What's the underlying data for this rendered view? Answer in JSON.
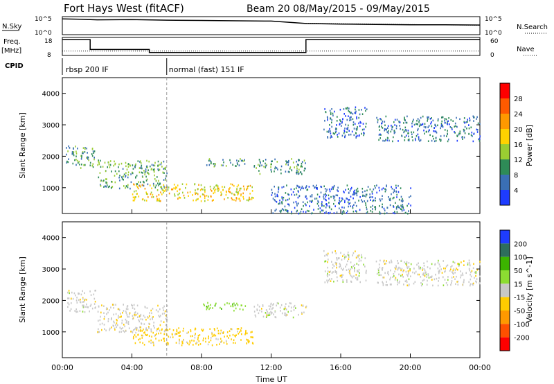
{
  "header": {
    "title": "Fort Hays West (fitACF)",
    "subtitle": "Beam 20 08/May/2015 - 09/May/2015"
  },
  "summary": {
    "nsky_label": "N.Sky",
    "nsky_ticks": [
      "10^5",
      "10^0"
    ],
    "nsearch_label": "N.Search",
    "nsearch_ticks": [
      "10^5",
      "10^0"
    ],
    "freq_label": "Freq.",
    "freq_unit": "[MHz]",
    "freq_ticks": [
      "18",
      "8"
    ],
    "nave_label": "Nave",
    "nave_ticks": [
      "60",
      "0"
    ],
    "cpid_label": "CPID",
    "cpid_segments": [
      {
        "label": "rbsp 200 IF",
        "start_hour": 0
      },
      {
        "label": "normal (fast) 151 IF",
        "start_hour": 6
      }
    ]
  },
  "axes": {
    "xlabel": "Time UT",
    "xticks": [
      "00:00",
      "04:00",
      "08:00",
      "12:00",
      "16:00",
      "20:00",
      "00:00"
    ],
    "ylabel": "Slant Range [km]",
    "yticks": [
      "1000",
      "2000",
      "3000",
      "4000"
    ]
  },
  "colorbars": {
    "power": {
      "label": "Power [dB]",
      "ticks": [
        "28",
        "24",
        "20",
        "16",
        "12",
        "8",
        "4"
      ],
      "colors": [
        "#ff0000",
        "#ff5a00",
        "#ff9900",
        "#ffd200",
        "#9acd32",
        "#2e8b57",
        "#3a6fb5",
        "#1e3cff"
      ]
    },
    "velocity": {
      "label": "Velocity [m s^-1]",
      "ticks": [
        "200",
        "100",
        "50",
        "15",
        "-15",
        "-50",
        "-100",
        "-200"
      ],
      "colors": [
        "#1e3cff",
        "#2e6e5c",
        "#3cb400",
        "#8cdc32",
        "#c8c8c8",
        "#ffcc00",
        "#ff9900",
        "#ff5000",
        "#ff0000"
      ]
    }
  },
  "chart_data": [
    {
      "type": "line",
      "title": "N.Sky / N.Search",
      "x_unit": "hours UT",
      "series": [
        {
          "name": "N.Sky",
          "x": [
            0,
            1,
            2,
            4,
            6,
            8,
            10,
            12,
            14,
            16,
            18,
            20,
            22,
            24
          ],
          "y_log10": [
            4.7,
            4.6,
            4.4,
            4.5,
            4.3,
            4.2,
            4.1,
            4.0,
            3.2,
            3.0,
            2.9,
            2.8,
            2.8,
            2.7
          ]
        }
      ]
    },
    {
      "type": "line",
      "title": "Freq. / Nave",
      "series": [
        {
          "name": "Freq. [MHz]",
          "x": [
            0,
            1.6,
            1.6,
            5,
            5,
            14,
            14,
            24
          ],
          "y": [
            17.5,
            17.5,
            11,
            11,
            9,
            9,
            17.5,
            17.5
          ]
        },
        {
          "name": "Nave",
          "x": [
            0,
            24
          ],
          "y": [
            12,
            12
          ]
        }
      ]
    },
    {
      "type": "heatmap",
      "title": "Power [dB]",
      "xlim": [
        0,
        24
      ],
      "ylim": [
        180,
        4500
      ],
      "regions": [
        {
          "t": [
            0.2,
            1.9
          ],
          "r": [
            1650,
            2350
          ],
          "value_db": 10
        },
        {
          "t": [
            2,
            6
          ],
          "r": [
            1000,
            1900
          ],
          "value_db": 11
        },
        {
          "t": [
            4,
            11
          ],
          "r": [
            600,
            1150
          ],
          "value_db": 18
        },
        {
          "t": [
            8,
            10.5
          ],
          "r": [
            1700,
            1950
          ],
          "value_db": 9
        },
        {
          "t": [
            11,
            14
          ],
          "r": [
            1450,
            1950
          ],
          "value_db": 9
        },
        {
          "t": [
            15,
            17.5
          ],
          "r": [
            2600,
            3600
          ],
          "value_db": 6
        },
        {
          "t": [
            18,
            24
          ],
          "r": [
            2500,
            3300
          ],
          "value_db": 7
        },
        {
          "t": [
            12,
            20
          ],
          "r": [
            200,
            1100
          ],
          "value_db": 6
        }
      ]
    },
    {
      "type": "heatmap",
      "title": "Velocity [m s^-1]",
      "xlim": [
        0,
        24
      ],
      "ylim": [
        180,
        4500
      ],
      "regions": [
        {
          "t": [
            0.2,
            1.9
          ],
          "r": [
            1650,
            2350
          ],
          "value_ms": 0
        },
        {
          "t": [
            2,
            6
          ],
          "r": [
            1000,
            1900
          ],
          "value_ms": -5
        },
        {
          "t": [
            4,
            11
          ],
          "r": [
            600,
            1150
          ],
          "value_ms": -30
        },
        {
          "t": [
            8,
            10.5
          ],
          "r": [
            1700,
            1950
          ],
          "value_ms": 40
        },
        {
          "t": [
            11,
            14
          ],
          "r": [
            1450,
            1950
          ],
          "value_ms": 0
        },
        {
          "t": [
            15,
            17.5
          ],
          "r": [
            2600,
            3600
          ],
          "value_ms": 0
        },
        {
          "t": [
            18,
            24
          ],
          "r": [
            2500,
            3300
          ],
          "value_ms": 0
        }
      ]
    }
  ]
}
